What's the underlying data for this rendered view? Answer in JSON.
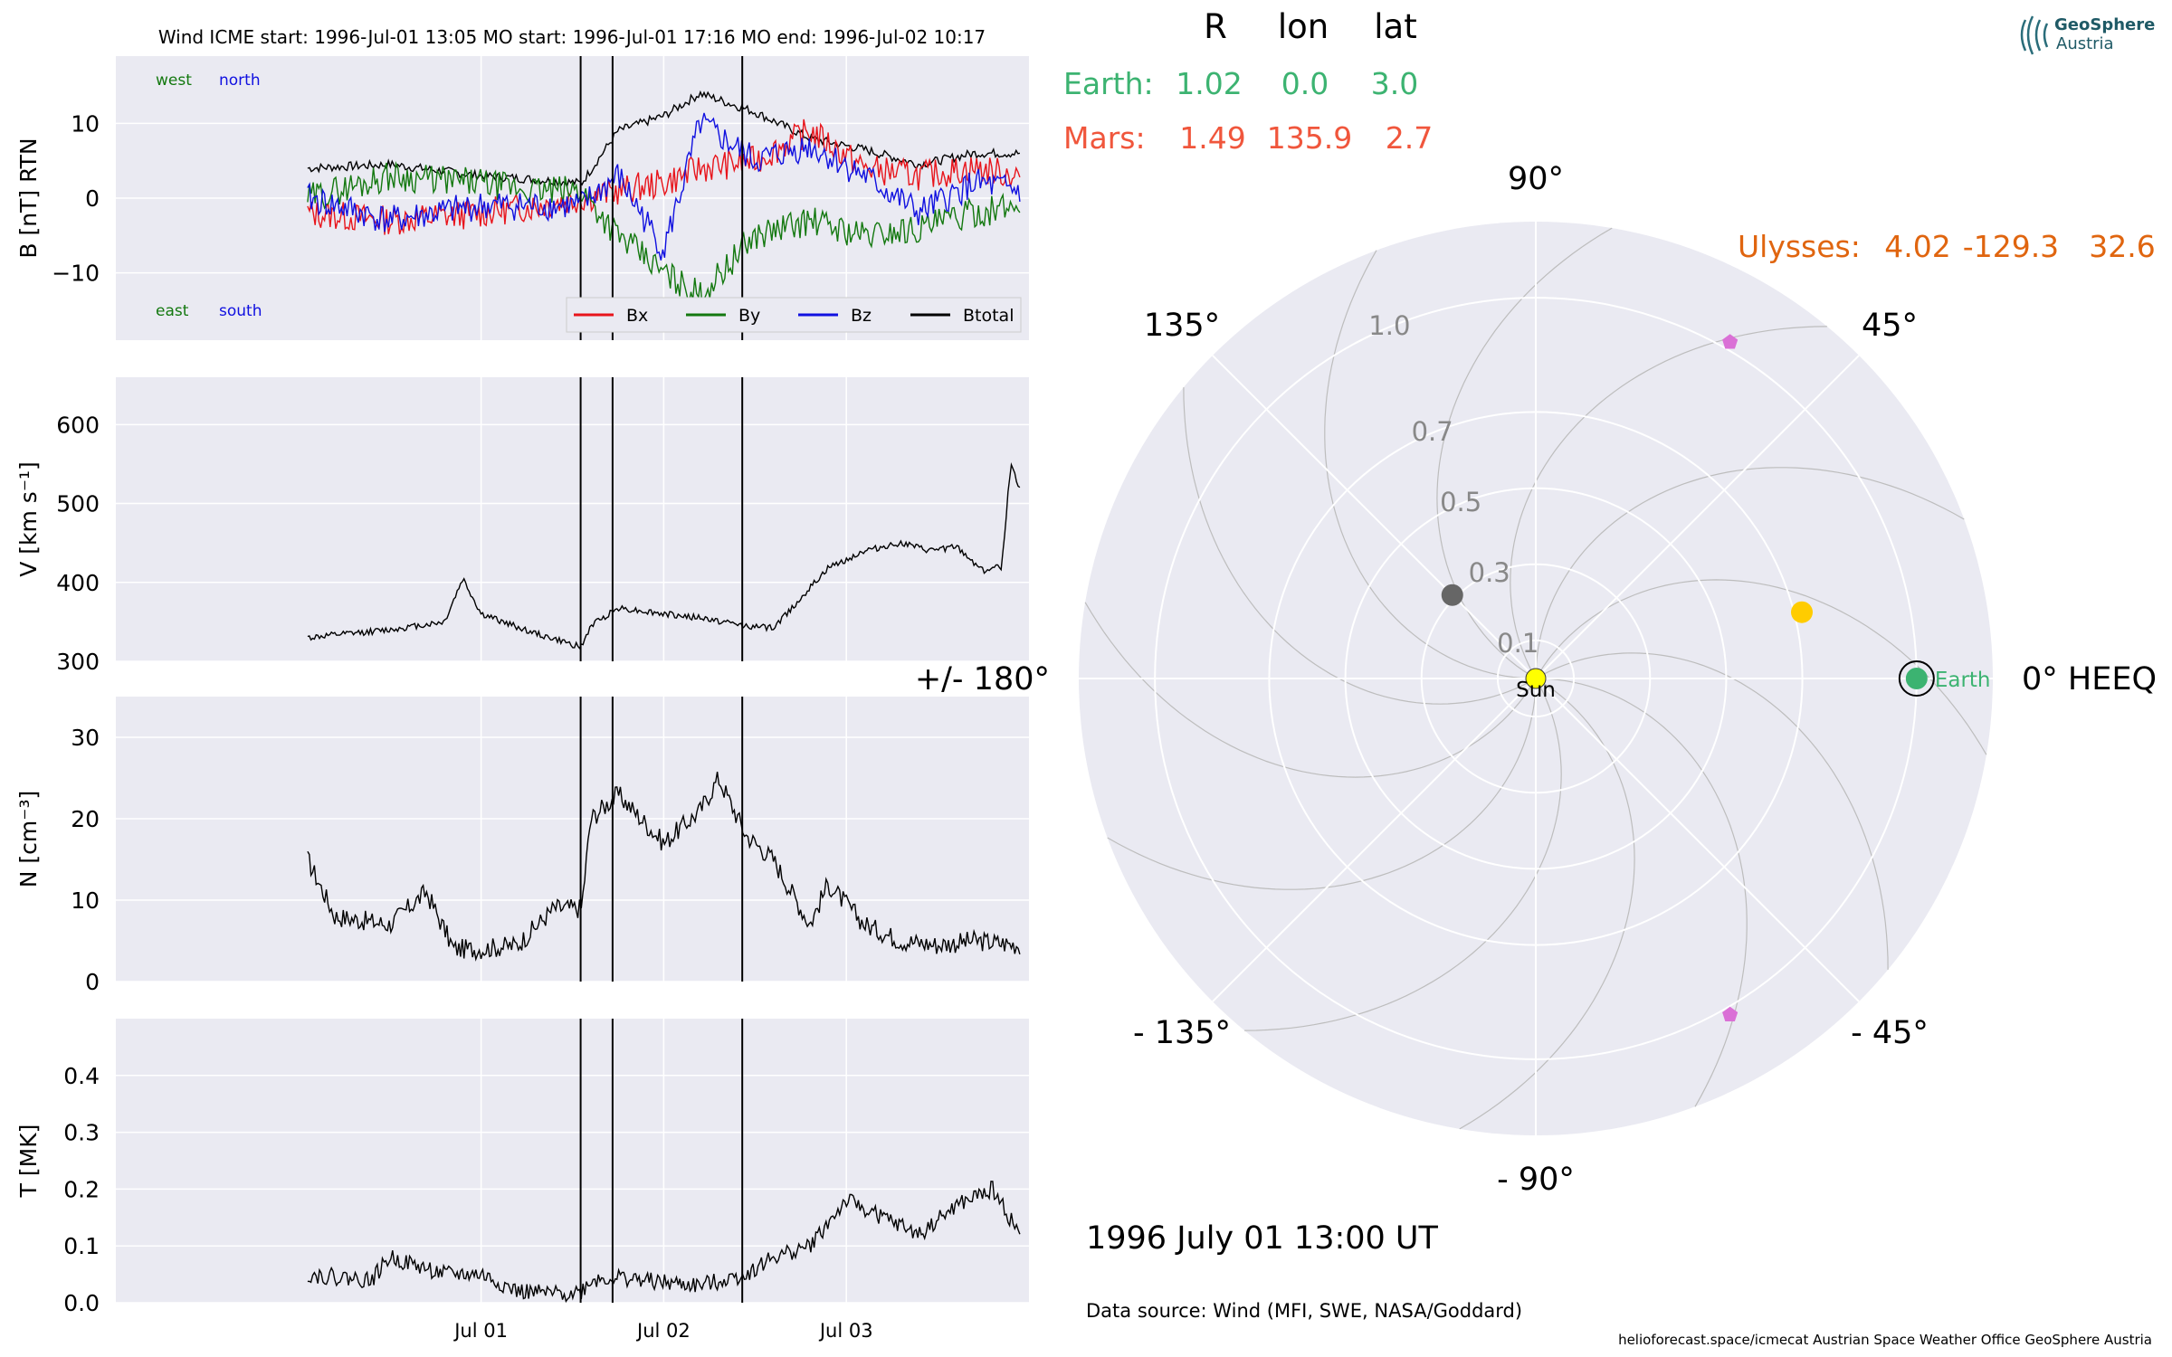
{
  "header": {
    "title": "Wind    ICME start: 1996-Jul-01 13:05   MO start: 1996-Jul-01 17:16   MO end: 1996-Jul-02 10:17",
    "spacecraft": "Wind",
    "icme_start": "1996-Jul-01 13:05",
    "mo_start": "1996-Jul-01 17:16",
    "mo_end": "1996-Jul-02 10:17"
  },
  "colors": {
    "bx": "#e8141b",
    "by": "#13780f",
    "bz": "#1010e0",
    "btotal": "#000000",
    "panel_bg": "#eaeaf2",
    "grid": "#ffffff",
    "earth": "#3cb371",
    "mars": "#f0563c",
    "ulysses": "#e0650f",
    "sun": "#ffff00",
    "venus": "#ffcc00",
    "mercury": "#666666",
    "stereo": "#da70d6"
  },
  "chart_data": [
    {
      "type": "line",
      "panel": "magnetic_field",
      "ylabel": "B [nT] RTN",
      "ylim": [
        -19,
        19
      ],
      "yticks": [
        "10",
        "0",
        "−10"
      ],
      "ytick_values": [
        10,
        0,
        -10
      ],
      "annotations": {
        "top_left": [
          "west",
          "north"
        ],
        "bottom_left": [
          "east",
          "south"
        ]
      },
      "legend": {
        "placement": "lower-right",
        "entries": [
          "Bx",
          "By",
          "Bz",
          "Btotal"
        ]
      },
      "xlim_days": [
        -2,
        3
      ],
      "series": [
        {
          "name": "Btotal",
          "x": [
            -0.95,
            -0.5,
            0,
            0.3,
            0.55,
            0.75,
            1.0,
            1.2,
            1.5,
            1.8,
            2.1,
            2.4,
            2.7,
            2.95
          ],
          "values": [
            4,
            4.5,
            3,
            2.5,
            2,
            9,
            11,
            14,
            11.5,
            8,
            6.5,
            4.5,
            6,
            6
          ]
        },
        {
          "name": "Bx",
          "x": [
            -0.95,
            -0.5,
            0,
            0.3,
            0.55,
            0.75,
            1.0,
            1.2,
            1.5,
            1.8,
            2.1,
            2.4,
            2.7,
            2.95
          ],
          "values": [
            -2,
            -3,
            -2,
            -1,
            0,
            1,
            2,
            4,
            5,
            9,
            4,
            3,
            4,
            3
          ]
        },
        {
          "name": "By",
          "x": [
            -0.95,
            -0.5,
            0,
            0.3,
            0.55,
            0.75,
            1.0,
            1.2,
            1.5,
            1.8,
            2.1,
            2.4,
            2.7,
            2.95
          ],
          "values": [
            0,
            3,
            2,
            1,
            1,
            -5,
            -10,
            -13,
            -5,
            -3,
            -5,
            -4,
            -2,
            -1
          ]
        },
        {
          "name": "Bz",
          "x": [
            -0.95,
            -0.5,
            0,
            0.3,
            0.55,
            0.75,
            1.0,
            1.2,
            1.5,
            1.8,
            2.1,
            2.4,
            2.7,
            2.95
          ],
          "values": [
            0,
            -3,
            -1,
            -1,
            -1,
            3,
            -7,
            10,
            5,
            7,
            3,
            -2,
            2,
            1
          ]
        }
      ]
    },
    {
      "type": "line",
      "panel": "speed",
      "ylabel": "V [km s⁻¹]",
      "ylim": [
        300,
        660
      ],
      "yticks": [
        "600",
        "500",
        "400",
        "300"
      ],
      "ytick_values": [
        600,
        500,
        400,
        300
      ],
      "series": [
        {
          "x": [
            -0.95,
            -0.5,
            -0.2,
            -0.1,
            0,
            0.3,
            0.55,
            0.6,
            0.75,
            1.0,
            1.2,
            1.45,
            1.6,
            1.75,
            1.9,
            2.1,
            2.3,
            2.45,
            2.6,
            2.75,
            2.85,
            2.9,
            2.95
          ],
          "values": [
            330,
            340,
            350,
            405,
            360,
            335,
            318,
            345,
            368,
            360,
            355,
            345,
            342,
            380,
            418,
            440,
            450,
            440,
            445,
            415,
            420,
            550,
            520
          ]
        }
      ]
    },
    {
      "type": "line",
      "panel": "density",
      "ylabel": "N [cm⁻³]",
      "ylim": [
        0,
        35
      ],
      "yticks": [
        "30",
        "20",
        "10",
        "0"
      ],
      "ytick_values": [
        30,
        20,
        10,
        0
      ],
      "series": [
        {
          "x": [
            -0.95,
            -0.8,
            -0.5,
            -0.3,
            -0.15,
            0,
            0.2,
            0.4,
            0.55,
            0.6,
            0.75,
            1.0,
            1.2,
            1.3,
            1.45,
            1.6,
            1.8,
            1.9,
            2.1,
            2.3,
            2.5,
            2.7,
            2.95
          ],
          "values": [
            15,
            8,
            7,
            11,
            4,
            4,
            4.5,
            9,
            9,
            20,
            23,
            17,
            21,
            25,
            18,
            15,
            7,
            12,
            7,
            5,
            4.5,
            5,
            4.5
          ]
        }
      ]
    },
    {
      "type": "line",
      "panel": "temperature",
      "ylabel": "T [MK]",
      "ylim": [
        0,
        0.5
      ],
      "yticks": [
        "0.4",
        "0.3",
        "0.2",
        "0.1",
        "0.0"
      ],
      "ytick_values": [
        0.4,
        0.3,
        0.2,
        0.1,
        0
      ],
      "xticks": [
        "Jul 01",
        "Jul 02",
        "Jul 03"
      ],
      "xtick_values": [
        0,
        1,
        2
      ],
      "series": [
        {
          "x": [
            -0.95,
            -0.6,
            -0.5,
            -0.2,
            0,
            0.2,
            0.4,
            0.55,
            0.6,
            0.75,
            1.0,
            1.2,
            1.45,
            1.6,
            1.8,
            2.0,
            2.2,
            2.4,
            2.6,
            2.8,
            2.95
          ],
          "values": [
            0.05,
            0.04,
            0.08,
            0.05,
            0.05,
            0.02,
            0.015,
            0.02,
            0.04,
            0.045,
            0.035,
            0.03,
            0.05,
            0.08,
            0.1,
            0.18,
            0.15,
            0.12,
            0.17,
            0.2,
            0.12
          ]
        }
      ]
    },
    {
      "type": "polar",
      "panel": "positions",
      "angle_labels": [
        "0° HEEQ",
        "45°",
        "90°",
        "135°",
        "+/- 180°",
        "- 135°",
        "- 90°",
        "- 45°"
      ],
      "angle_values": [
        0,
        45,
        90,
        135,
        180,
        -135,
        -90,
        -45
      ],
      "radial_labels": [
        "0.1",
        "0.3",
        "0.5",
        "0.7",
        "1.0"
      ],
      "radial_values": [
        0.1,
        0.3,
        0.5,
        0.7,
        1.0
      ],
      "r_max": 1.2,
      "table_header": [
        "R",
        "lon",
        "lat"
      ],
      "table_rows": [
        {
          "name": "Earth:",
          "R": "1.02",
          "lon": "0.0",
          "lat": "3.0"
        },
        {
          "name": "Mars:",
          "R": "1.49",
          "lon": "135.9",
          "lat": "2.7"
        },
        {
          "name": "Ulysses:",
          "R": "4.02",
          "lon": "-129.3",
          "lat": "32.6"
        }
      ],
      "bodies": [
        {
          "id": "sun",
          "label": "Sun",
          "r": 0,
          "lon": 0
        },
        {
          "id": "earth",
          "label": "Earth",
          "r": 1.0,
          "lon": 0
        },
        {
          "id": "venus",
          "label": "",
          "r": 0.72,
          "lon": 14
        },
        {
          "id": "mercury",
          "label": "",
          "r": 0.31,
          "lon": 135
        },
        {
          "id": "stereo-a",
          "label": "",
          "r": 1.02,
          "lon": 60
        },
        {
          "id": "stereo-b",
          "label": "",
          "r": 1.02,
          "lon": -60
        }
      ],
      "date": "1996 July 01  13:00 UT",
      "data_source": "Data source: Wind (MFI, SWE, NASA/Goddard)"
    }
  ],
  "logo": {
    "line1": "GeoSphere",
    "line2": "Austria"
  },
  "footer": "helioforecast.space/icmecat   Austrian Space Weather Office   GeoSphere Austria"
}
